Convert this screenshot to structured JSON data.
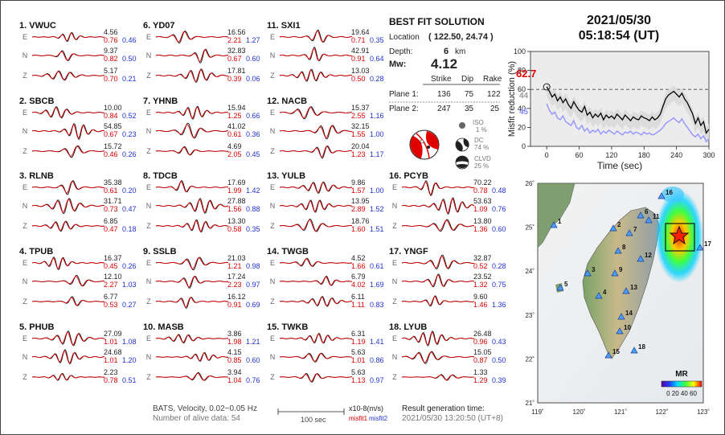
{
  "stations": [
    {
      "id": "1. VWUC",
      "col": 0,
      "row": 0,
      "comps": [
        [
          "4.56",
          "0.76",
          "0.46"
        ],
        [
          "9.37",
          "0.82",
          "0.50"
        ],
        [
          "5.17",
          "0.70",
          "0.21"
        ]
      ]
    },
    {
      "id": "2. SBCB",
      "col": 0,
      "row": 1,
      "comps": [
        [
          "10.00",
          "0.84",
          "0.52"
        ],
        [
          "54.85",
          "0.67",
          "0.23"
        ],
        [
          "15.72",
          "0.46",
          "0.26"
        ]
      ]
    },
    {
      "id": "3. RLNB",
      "col": 0,
      "row": 2,
      "comps": [
        [
          "35.38",
          "0.61",
          "0.20"
        ],
        [
          "31.71",
          "0.73",
          "0.47"
        ],
        [
          "6.85",
          "0.47",
          "0.18"
        ]
      ]
    },
    {
      "id": "4. TPUB",
      "col": 0,
      "row": 3,
      "comps": [
        [
          "16.37",
          "0.45",
          "0.26"
        ],
        [
          "12.10",
          "2.27",
          "1.03"
        ],
        [
          "6.77",
          "0.53",
          "0.27"
        ]
      ]
    },
    {
      "id": "5. PHUB",
      "col": 0,
      "row": 4,
      "comps": [
        [
          "27.09",
          "1.01",
          "1.08"
        ],
        [
          "24.68",
          "1.01",
          "1.20"
        ],
        [
          "2.23",
          "0.78",
          "0.51"
        ]
      ]
    },
    {
      "id": "6. YD07",
      "col": 1,
      "row": 0,
      "comps": [
        [
          "16.56",
          "2.21",
          "1.27"
        ],
        [
          "32.83",
          "0.67",
          "0.60"
        ],
        [
          "17.81",
          "0.39",
          "0.06"
        ]
      ]
    },
    {
      "id": "7. YHNB",
      "col": 1,
      "row": 1,
      "comps": [
        [
          "15.94",
          "1.25",
          "0.66"
        ],
        [
          "41.02",
          "0.61",
          "0.36"
        ],
        [
          "4.69",
          "2.05",
          "0.45"
        ]
      ]
    },
    {
      "id": "8. TDCB",
      "col": 1,
      "row": 2,
      "comps": [
        [
          "17.69",
          "1.99",
          "1.42"
        ],
        [
          "27.88",
          "1.56",
          "0.88"
        ],
        [
          "13.30",
          "0.58",
          "0.35"
        ]
      ]
    },
    {
      "id": "9. SSLB",
      "col": 1,
      "row": 3,
      "comps": [
        [
          "21.03",
          "1.21",
          "0.98"
        ],
        [
          "17.24",
          "2.23",
          "0.97"
        ],
        [
          "16.12",
          "0.91",
          "0.69"
        ]
      ]
    },
    {
      "id": "10. MASB",
      "col": 1,
      "row": 4,
      "comps": [
        [
          "3.86",
          "1.98",
          "1.21"
        ],
        [
          "4.15",
          "0.85",
          "0.60"
        ],
        [
          "3.94",
          "1.04",
          "0.76"
        ]
      ]
    },
    {
      "id": "11. SXI1",
      "col": 2,
      "row": 0,
      "comps": [
        [
          "19.64",
          "0.71",
          "0.35"
        ],
        [
          "42.91",
          "0.91",
          "0.64"
        ],
        [
          "13.03",
          "0.50",
          "0.28"
        ]
      ]
    },
    {
      "id": "12. NACB",
      "col": 2,
      "row": 1,
      "comps": [
        [
          "15.37",
          "2.55",
          "1.16"
        ],
        [
          "32.15",
          "1.55",
          "1.00"
        ],
        [
          "20.04",
          "1.23",
          "1.17"
        ]
      ]
    },
    {
      "id": "13. YULB",
      "col": 2,
      "row": 2,
      "comps": [
        [
          "9.86",
          "1.57",
          "1.00"
        ],
        [
          "13.95",
          "2.89",
          "1.52"
        ],
        [
          "18.76",
          "1.60",
          "1.51"
        ]
      ]
    },
    {
      "id": "14. TWGB",
      "col": 2,
      "row": 3,
      "comps": [
        [
          "4.52",
          "1.66",
          "0.61"
        ],
        [
          "6.79",
          "4.02",
          "1.69"
        ],
        [
          "6.11",
          "1.11",
          "0.83"
        ]
      ]
    },
    {
      "id": "15. TWKB",
      "col": 2,
      "row": 4,
      "comps": [
        [
          "6.31",
          "1.19",
          "1.41"
        ],
        [
          "5.63",
          "1.01",
          "0.86"
        ],
        [
          "5.63",
          "1.13",
          "0.97"
        ]
      ]
    },
    {
      "id": "16. PCYB",
      "col": 3,
      "row": 2,
      "comps": [
        [
          "70.22",
          "0.78",
          "0.48"
        ],
        [
          "53.63",
          "1.09",
          "0.76"
        ],
        [
          "13.80",
          "1.36",
          "0.60"
        ]
      ]
    },
    {
      "id": "17. YNGF",
      "col": 3,
      "row": 3,
      "comps": [
        [
          "32.87",
          "0.52",
          "0.28"
        ],
        [
          "23.52",
          "1.32",
          "0.75"
        ],
        [
          "9.60",
          "1.46",
          "1.36"
        ]
      ]
    },
    {
      "id": "18. LYUB",
      "col": 3,
      "row": 4,
      "comps": [
        [
          "26.48",
          "0.96",
          "0.43"
        ],
        [
          "15.05",
          "0.87",
          "0.50"
        ],
        [
          "1.33",
          "1.29",
          "0.39"
        ]
      ]
    }
  ],
  "components": [
    "E",
    "N",
    "Z"
  ],
  "best_fit": {
    "title": "BEST FIT SOLUTION",
    "location_label": "Location",
    "location_value": "( 122.50, 24.74 )",
    "depth_label": "Depth:",
    "depth_value": "6",
    "depth_unit": "km",
    "mw_label": "Mw:",
    "mw_value": "4.12",
    "headers": [
      "Strike",
      "Dip",
      "Rake"
    ],
    "planes": [
      {
        "label": "Plane 1:",
        "strike": "136",
        "dip": "75",
        "rake": "122"
      },
      {
        "label": "Plane 2:",
        "strike": "247",
        "dip": "35",
        "rake": "25"
      }
    ],
    "iso": {
      "label": "ISO",
      "pct": "1 %"
    },
    "dc": {
      "label": "DC",
      "pct": "74 %"
    },
    "clvd": {
      "label": "CLVD",
      "pct": "25 %"
    }
  },
  "datetime": {
    "date": "2021/05/30",
    "time": "05:18:54  (UT)"
  },
  "chart_data": {
    "type": "line",
    "xlabel": "Time (sec)",
    "ylabel": "Misfit reduction (%)",
    "xlim": [
      -30,
      300
    ],
    "ylim": [
      0,
      100
    ],
    "xticks": [
      0,
      60,
      120,
      180,
      240,
      300
    ],
    "yticks": [
      0,
      20,
      40,
      60,
      80,
      100
    ],
    "reference_line": 60,
    "annotations": [
      {
        "text": "62.7",
        "color": "#e00000"
      },
      {
        "text": "44",
        "color": "#999999"
      },
      {
        "text": "45",
        "color": "#8888ff"
      }
    ],
    "series": [
      {
        "color": "#000000",
        "x": [
          0,
          5,
          10,
          15,
          20,
          25,
          30,
          35,
          40,
          45,
          50,
          55,
          60,
          65,
          70,
          75,
          80,
          85,
          90,
          95,
          100,
          105,
          110,
          115,
          120,
          125,
          130,
          135,
          140,
          145,
          150,
          155,
          160,
          165,
          170,
          175,
          180,
          185,
          190,
          195,
          200,
          205,
          210,
          215,
          220,
          225,
          230,
          235,
          240,
          245,
          250,
          255,
          260,
          265,
          270,
          275,
          280,
          285,
          290,
          295,
          300
        ],
        "y": [
          62.7,
          58,
          52,
          55,
          48,
          52,
          46,
          50,
          44,
          40,
          47,
          42,
          38,
          36,
          42,
          33,
          36,
          30,
          34,
          31,
          35,
          28,
          33,
          30,
          32,
          29,
          34,
          31,
          28,
          33,
          30,
          27,
          31,
          29,
          28,
          32,
          30,
          29,
          27,
          31,
          28,
          30,
          34,
          42,
          50,
          54,
          56,
          58,
          55,
          52,
          56,
          50,
          46,
          40,
          34,
          24,
          30,
          22,
          26,
          14,
          18
        ]
      },
      {
        "color": "#9999ff",
        "x": [
          0,
          5,
          10,
          15,
          20,
          25,
          30,
          35,
          40,
          45,
          50,
          55,
          60,
          65,
          70,
          75,
          80,
          85,
          90,
          95,
          100,
          105,
          110,
          115,
          120,
          125,
          130,
          135,
          140,
          145,
          150,
          155,
          160,
          165,
          170,
          175,
          180,
          185,
          190,
          195,
          200,
          205,
          210,
          215,
          220,
          225,
          230,
          235,
          240,
          245,
          250,
          255,
          260,
          265,
          270,
          275,
          280,
          285,
          290,
          295,
          300
        ],
        "y": [
          45,
          38,
          34,
          36,
          30,
          28,
          32,
          26,
          24,
          22,
          27,
          20,
          18,
          22,
          16,
          19,
          14,
          17,
          15,
          18,
          13,
          16,
          14,
          17,
          15,
          13,
          16,
          14,
          12,
          15,
          14,
          16,
          13,
          15,
          14,
          12,
          15,
          13,
          14,
          12,
          13,
          15,
          17,
          20,
          24,
          26,
          28,
          30,
          27,
          25,
          29,
          24,
          20,
          16,
          12,
          10,
          13,
          8,
          11,
          5,
          8
        ]
      }
    ]
  },
  "map": {
    "xticks": [
      "119˚",
      "120˚",
      "121˚",
      "122˚",
      "123˚"
    ],
    "yticks": [
      "26˚",
      "25˚",
      "24˚",
      "23˚",
      "22˚",
      "21˚"
    ],
    "station_labels": [
      "1",
      "2",
      "3",
      "4",
      "5",
      "6",
      "7",
      "8",
      "9",
      "10",
      "11",
      "12",
      "13",
      "14",
      "15",
      "16",
      "17",
      "18"
    ],
    "mr_label": "MR",
    "mr_ticks": "0 20 40 60"
  },
  "footer": {
    "line1": "BATS, Velocity, 0.02~0.05 Hz",
    "line2": "Number of alive data: 54",
    "scale_label": "100 sec",
    "units": "x10-8(m/s)",
    "misfit1": "misfit1",
    "misfit2": "misfit2",
    "gen_label": "Result generation time:",
    "gen_time": "2021/05/30  13:20:50  (UT+8)"
  }
}
